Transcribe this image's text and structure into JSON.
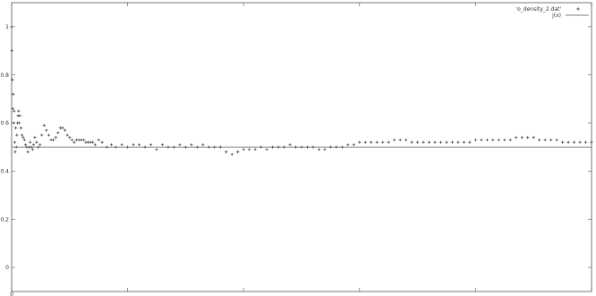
{
  "chart_data": {
    "type": "scatter",
    "xlim": [
      0,
      5000
    ],
    "ylim": [
      -0.1,
      1.1
    ],
    "yticks": [
      0,
      0.2,
      0.4,
      0.6,
      0.8,
      1
    ],
    "ytick_labels": [
      "0",
      "0.2",
      "0.4",
      "0.6",
      "0.8",
      "1"
    ],
    "xticks": [
      0,
      1000,
      2000,
      3000,
      4000,
      5000
    ],
    "xtick_labels": [
      "0",
      "",
      "",
      "",
      "",
      ""
    ],
    "grid": false,
    "legend_position": "top-right",
    "series": [
      {
        "name": "'o_density_2.dat'",
        "kind": "points",
        "color": "#3a3a3a",
        "marker": "plus",
        "x": [
          0,
          3,
          6,
          10,
          14,
          18,
          22,
          26,
          30,
          35,
          40,
          45,
          50,
          55,
          60,
          65,
          70,
          80,
          90,
          100,
          110,
          120,
          130,
          140,
          150,
          160,
          170,
          180,
          190,
          200,
          215,
          230,
          245,
          260,
          280,
          300,
          320,
          340,
          360,
          380,
          400,
          420,
          440,
          460,
          480,
          500,
          520,
          540,
          560,
          580,
          600,
          620,
          640,
          660,
          680,
          700,
          720,
          750,
          780,
          820,
          860,
          900,
          950,
          1000,
          1050,
          1100,
          1150,
          1200,
          1250,
          1300,
          1350,
          1400,
          1450,
          1500,
          1550,
          1600,
          1650,
          1700,
          1750,
          1800,
          1850,
          1900,
          1950,
          2000,
          2050,
          2100,
          2150,
          2200,
          2250,
          2300,
          2350,
          2400,
          2450,
          2500,
          2550,
          2600,
          2650,
          2700,
          2750,
          2800,
          2850,
          2900,
          2950,
          3000,
          3050,
          3100,
          3150,
          3200,
          3250,
          3300,
          3350,
          3400,
          3450,
          3500,
          3550,
          3600,
          3650,
          3700,
          3750,
          3800,
          3850,
          3900,
          3950,
          4000,
          4050,
          4100,
          4150,
          4200,
          4250,
          4300,
          4350,
          4400,
          4450,
          4500,
          4550,
          4600,
          4650,
          4700,
          4750,
          4800,
          4850,
          4900,
          4950,
          5000
        ],
        "y": [
          1.0,
          0.9,
          0.78,
          0.66,
          0.72,
          0.6,
          0.65,
          0.52,
          0.48,
          0.58,
          0.5,
          0.55,
          0.6,
          0.63,
          0.65,
          0.6,
          0.63,
          0.58,
          0.55,
          0.54,
          0.53,
          0.51,
          0.5,
          0.48,
          0.5,
          0.52,
          0.5,
          0.49,
          0.51,
          0.54,
          0.52,
          0.5,
          0.51,
          0.55,
          0.59,
          0.57,
          0.55,
          0.53,
          0.53,
          0.54,
          0.56,
          0.58,
          0.58,
          0.57,
          0.55,
          0.54,
          0.53,
          0.52,
          0.53,
          0.53,
          0.53,
          0.53,
          0.52,
          0.52,
          0.52,
          0.52,
          0.51,
          0.53,
          0.52,
          0.5,
          0.51,
          0.5,
          0.51,
          0.5,
          0.51,
          0.51,
          0.5,
          0.51,
          0.49,
          0.51,
          0.5,
          0.5,
          0.51,
          0.5,
          0.51,
          0.5,
          0.51,
          0.5,
          0.5,
          0.5,
          0.48,
          0.47,
          0.48,
          0.49,
          0.49,
          0.49,
          0.5,
          0.49,
          0.5,
          0.5,
          0.5,
          0.51,
          0.5,
          0.5,
          0.5,
          0.5,
          0.49,
          0.49,
          0.5,
          0.5,
          0.5,
          0.51,
          0.51,
          0.52,
          0.52,
          0.52,
          0.52,
          0.52,
          0.52,
          0.53,
          0.53,
          0.53,
          0.52,
          0.52,
          0.52,
          0.52,
          0.52,
          0.52,
          0.52,
          0.52,
          0.52,
          0.52,
          0.52,
          0.53,
          0.53,
          0.53,
          0.53,
          0.53,
          0.53,
          0.53,
          0.54,
          0.54,
          0.54,
          0.54,
          0.53,
          0.53,
          0.53,
          0.53,
          0.52,
          0.52,
          0.52,
          0.52,
          0.52,
          0.52
        ]
      },
      {
        "name": "j(x)",
        "kind": "line",
        "color": "#555555",
        "x": [
          0,
          5000
        ],
        "y": [
          0.5,
          0.5
        ]
      }
    ]
  }
}
